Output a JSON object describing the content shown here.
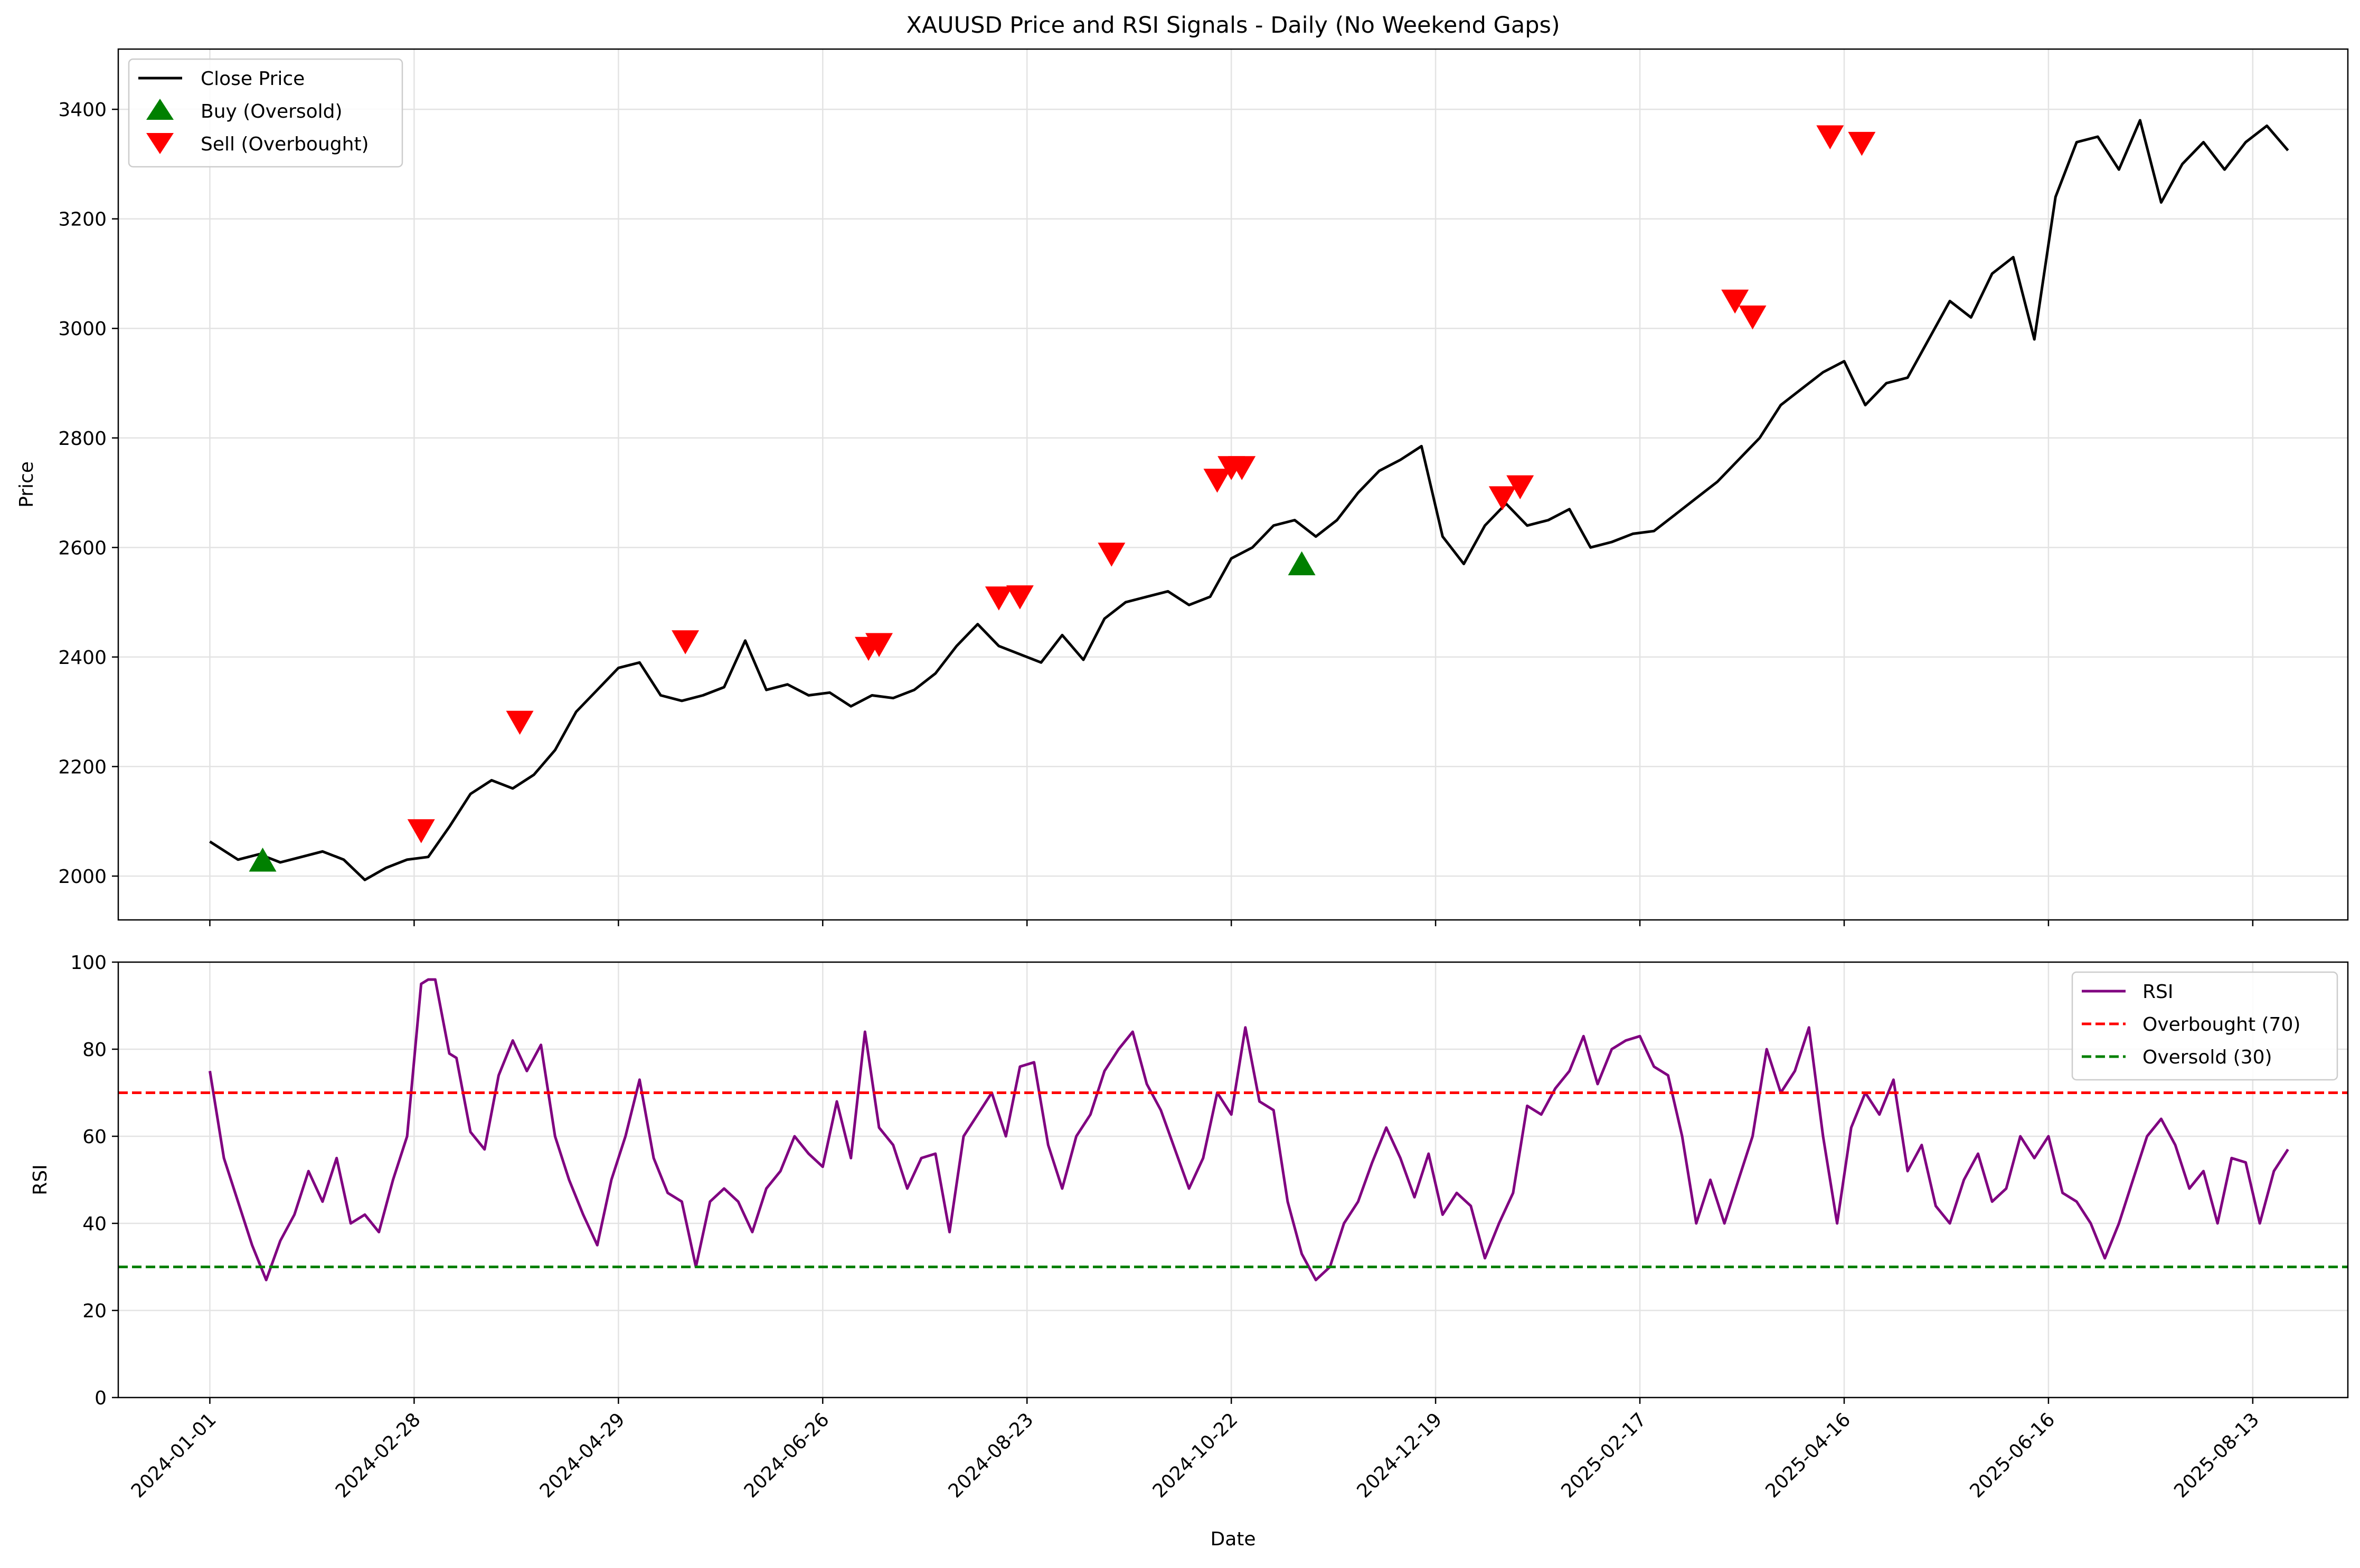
{
  "chart_data": [
    {
      "type": "line",
      "title": "XAUUSD Price and RSI Signals - Daily (No Weekend Gaps)",
      "ylabel": "Price",
      "ylim": [
        1920,
        3510
      ],
      "yticks": [
        "2000",
        "2200",
        "2400",
        "2600",
        "2800",
        "3000",
        "3200",
        "3400"
      ],
      "grid": true,
      "legend_position": "top-left",
      "series": [
        {
          "name": "Close Price",
          "color": "#000000",
          "x_index": [
            0,
            8,
            14,
            20,
            26,
            32,
            38,
            44,
            50,
            56,
            62,
            68,
            74,
            80,
            86,
            92,
            98,
            104,
            110,
            116,
            122,
            128,
            134,
            140,
            146,
            152,
            158,
            164,
            170,
            176,
            182,
            188,
            194,
            200,
            206,
            212,
            218,
            224,
            230,
            236,
            242,
            248,
            254,
            260,
            266,
            272,
            278,
            284,
            290,
            296,
            302,
            308,
            314,
            320,
            326,
            332,
            338,
            344,
            350,
            356,
            362,
            368,
            374,
            380,
            386,
            392,
            398,
            404,
            410,
            416,
            422,
            428,
            434,
            440,
            446,
            452,
            458,
            464,
            470,
            476,
            482,
            488,
            494,
            500,
            506,
            512,
            518,
            524,
            530,
            536,
            542,
            548,
            554,
            560,
            566,
            572,
            578,
            584,
            590
          ],
          "values": [
            2063,
            2030,
            2040,
            2025,
            2035,
            2045,
            2030,
            1993,
            2015,
            2030,
            2035,
            2090,
            2150,
            2175,
            2160,
            2185,
            2230,
            2300,
            2340,
            2380,
            2390,
            2330,
            2320,
            2330,
            2345,
            2430,
            2340,
            2350,
            2330,
            2335,
            2310,
            2330,
            2325,
            2340,
            2370,
            2420,
            2460,
            2420,
            2405,
            2390,
            2440,
            2395,
            2470,
            2500,
            2510,
            2520,
            2495,
            2510,
            2580,
            2600,
            2640,
            2650,
            2620,
            2650,
            2700,
            2740,
            2760,
            2785,
            2620,
            2570,
            2640,
            2680,
            2640,
            2650,
            2670,
            2600,
            2610,
            2625,
            2630,
            2660,
            2690,
            2720,
            2760,
            2800,
            2860,
            2890,
            2920,
            2940,
            2860,
            2900,
            2910,
            2980,
            3050,
            3020,
            3100,
            3130,
            2980,
            3240,
            3340,
            3350,
            3290,
            3380,
            3230,
            3300,
            3340,
            3290,
            3340,
            3370,
            3325
          ]
        }
      ],
      "markers": [
        {
          "name": "Buy (Oversold)",
          "color": "#008000",
          "shape": "triangle-up",
          "points": [
            [
              15,
              2027
            ],
            [
              310,
              2568
            ]
          ]
        },
        {
          "name": "Sell (Overbought)",
          "color": "#ff0000",
          "shape": "triangle-down",
          "points": [
            [
              60,
              2085
            ],
            [
              88,
              2283
            ],
            [
              135,
              2430
            ],
            [
              187,
              2418
            ],
            [
              190,
              2425
            ],
            [
              224,
              2510
            ],
            [
              230,
              2512
            ],
            [
              256,
              2590
            ],
            [
              286,
              2725
            ],
            [
              290,
              2748
            ],
            [
              293,
              2748
            ],
            [
              367,
              2693
            ],
            [
              372,
              2713
            ],
            [
              433,
              3052
            ],
            [
              438,
              3023
            ],
            [
              460,
              3352
            ],
            [
              469,
              3340
            ]
          ]
        }
      ]
    },
    {
      "type": "line",
      "ylabel": "RSI",
      "xlabel": "Date",
      "ylim": [
        0,
        100
      ],
      "yticks": [
        "0",
        "20",
        "40",
        "60",
        "80",
        "100"
      ],
      "x_tick_labels": [
        "2024-01-01",
        "2024-02-28",
        "2024-04-29",
        "2024-06-26",
        "2024-08-23",
        "2024-10-22",
        "2024-12-19",
        "2025-02-17",
        "2025-04-16",
        "2025-06-16",
        "2025-08-13"
      ],
      "x_tick_index": [
        0,
        58,
        116,
        174,
        232,
        290,
        348,
        406,
        464,
        522,
        580
      ],
      "grid": true,
      "legend_position": "top-right",
      "series": [
        {
          "name": "RSI",
          "color": "#800080",
          "x_index": [
            0,
            4,
            8,
            12,
            16,
            20,
            24,
            28,
            32,
            36,
            40,
            44,
            48,
            52,
            56,
            60,
            62,
            64,
            68,
            70,
            74,
            78,
            82,
            86,
            90,
            94,
            98,
            102,
            106,
            110,
            114,
            118,
            122,
            126,
            130,
            134,
            138,
            142,
            146,
            150,
            154,
            158,
            162,
            166,
            170,
            174,
            178,
            182,
            186,
            190,
            194,
            198,
            202,
            206,
            210,
            214,
            218,
            222,
            226,
            230,
            234,
            238,
            242,
            246,
            250,
            254,
            258,
            262,
            266,
            270,
            274,
            278,
            282,
            286,
            290,
            294,
            298,
            302,
            306,
            310,
            314,
            318,
            322,
            326,
            330,
            334,
            338,
            342,
            346,
            350,
            354,
            358,
            362,
            366,
            370,
            374,
            378,
            382,
            386,
            390,
            394,
            398,
            402,
            406,
            410,
            414,
            418,
            422,
            426,
            430,
            434,
            438,
            442,
            446,
            450,
            454,
            458,
            462,
            466,
            470,
            474,
            478,
            482,
            486,
            490,
            494,
            498,
            502,
            506,
            510,
            514,
            518,
            522,
            526,
            530,
            534,
            538,
            542,
            546,
            550,
            554,
            558,
            562,
            566,
            570,
            574,
            578,
            582,
            586,
            590
          ],
          "values": [
            75,
            55,
            45,
            35,
            27,
            36,
            42,
            52,
            45,
            55,
            40,
            42,
            38,
            50,
            60,
            95,
            96,
            96,
            79,
            78,
            61,
            57,
            74,
            82,
            75,
            81,
            60,
            50,
            42,
            35,
            50,
            60,
            73,
            55,
            47,
            45,
            30,
            45,
            48,
            45,
            38,
            48,
            52,
            60,
            56,
            53,
            68,
            55,
            84,
            62,
            58,
            48,
            55,
            56,
            38,
            60,
            65,
            70,
            60,
            76,
            77,
            58,
            48,
            60,
            65,
            75,
            80,
            84,
            72,
            66,
            57,
            48,
            55,
            70,
            65,
            85,
            68,
            66,
            45,
            33,
            27,
            30,
            40,
            45,
            54,
            62,
            55,
            46,
            56,
            42,
            47,
            44,
            32,
            40,
            47,
            67,
            65,
            71,
            75,
            83,
            72,
            80,
            82,
            83,
            76,
            74,
            60,
            40,
            50,
            40,
            50,
            60,
            80,
            70,
            75,
            85,
            60,
            40,
            62,
            70,
            65,
            73,
            52,
            58,
            44,
            40,
            50,
            56,
            45,
            48,
            60,
            55,
            60,
            47,
            45,
            40,
            32,
            40,
            50,
            60,
            64,
            58,
            48,
            52,
            40,
            55,
            54,
            40,
            52,
            57
          ]
        },
        {
          "name": "Overbought (70)",
          "color": "#ff0000",
          "dash": "dashed",
          "value": 70
        },
        {
          "name": "Oversold (30)",
          "color": "#008000",
          "dash": "dashed",
          "value": 30
        }
      ]
    }
  ]
}
